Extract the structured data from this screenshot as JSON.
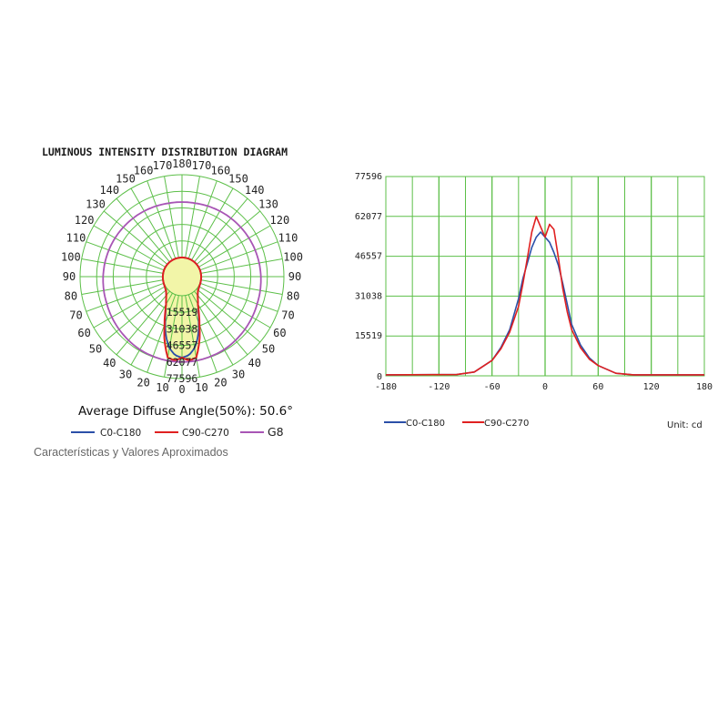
{
  "header": {
    "title": "LUMINOUS INTENSITY DISTRIBUTION DIAGRAM"
  },
  "polar": {
    "ring_labels": [
      "15519",
      "31038",
      "46557",
      "62077",
      "77596"
    ],
    "angle_labels": [
      "0",
      "10",
      "20",
      "30",
      "40",
      "50",
      "60",
      "70",
      "80",
      "90",
      "100",
      "110",
      "120",
      "130",
      "140",
      "150",
      "160",
      "170",
      "180",
      "170",
      "160",
      "150",
      "140",
      "130",
      "120",
      "110",
      "100",
      "90",
      "80",
      "70",
      "60",
      "50",
      "40",
      "30",
      "20",
      "10"
    ],
    "average_angle_label": "Average Diffuse Angle(50%): 50.6°",
    "legend": [
      "C0-C180",
      "C90-C270",
      "G8"
    ]
  },
  "footer": {
    "note": "Características y Valores Aproximados"
  },
  "unit_label": "Unit: cd",
  "colors": {
    "c0": "#2b4fa8",
    "c90": "#e02020",
    "g8": "#a855b5",
    "grid": "#5cbf48",
    "fill": "#f2f5a8"
  },
  "chart_data": [
    {
      "type": "polar",
      "title": "LUMINOUS INTENSITY DISTRIBUTION DIAGRAM",
      "r_max": 77596,
      "r_ticks": [
        15519,
        31038,
        46557,
        62077,
        77596
      ],
      "series": [
        {
          "name": "C0-C180",
          "angles": [
            0,
            5,
            10,
            15,
            20,
            25,
            30,
            35,
            40,
            45,
            50,
            60,
            70,
            80,
            90,
            180
          ],
          "values": [
            58000,
            56000,
            50000,
            40000,
            28000,
            18000,
            12000,
            8000,
            5000,
            3000,
            1800,
            700,
            300,
            150,
            50,
            0
          ]
        },
        {
          "name": "C90-C270",
          "angles": [
            0,
            5,
            10,
            15,
            20,
            25,
            30,
            35,
            40,
            45,
            50,
            60,
            70,
            80,
            90,
            180
          ],
          "values": [
            58000,
            61000,
            59000,
            45000,
            30000,
            19000,
            12000,
            8000,
            5000,
            3000,
            1800,
            700,
            300,
            150,
            50,
            0
          ]
        },
        {
          "name": "G8",
          "angles": [
            0,
            10,
            20,
            30,
            40,
            50,
            60,
            70,
            80,
            90,
            100,
            110,
            120,
            130,
            140,
            150,
            160,
            170,
            180
          ],
          "values": [
            62000,
            62000,
            61500,
            61000,
            60000,
            59000,
            58000,
            57000,
            56500,
            56000,
            55500,
            55000,
            54500,
            54000,
            53500,
            53000,
            52500,
            52000,
            52000
          ]
        }
      ]
    },
    {
      "type": "line",
      "xlim": [
        -180,
        180
      ],
      "x_ticks": [
        -180,
        -120,
        -60,
        0,
        60,
        120,
        180
      ],
      "ylim": [
        0,
        77596
      ],
      "y_ticks": [
        0,
        15519,
        31038,
        46557,
        62077,
        77596
      ],
      "series": [
        {
          "name": "C0-C180",
          "x": [
            -180,
            -100,
            -80,
            -60,
            -50,
            -40,
            -30,
            -25,
            -20,
            -15,
            -10,
            -5,
            0,
            5,
            10,
            15,
            20,
            25,
            30,
            40,
            50,
            60,
            80,
            100,
            180
          ],
          "y": [
            400,
            500,
            1500,
            6000,
            11000,
            18000,
            30000,
            38000,
            44000,
            50000,
            54000,
            56000,
            54000,
            52000,
            48000,
            43000,
            36000,
            28000,
            20000,
            12000,
            7000,
            4000,
            1000,
            400,
            400
          ]
        },
        {
          "name": "C90-C270",
          "x": [
            -180,
            -100,
            -80,
            -60,
            -50,
            -40,
            -30,
            -25,
            -20,
            -15,
            -10,
            -5,
            0,
            5,
            10,
            15,
            20,
            25,
            30,
            40,
            50,
            60,
            80,
            100,
            180
          ],
          "y": [
            400,
            500,
            1500,
            6000,
            10500,
            17000,
            27000,
            36000,
            46000,
            56000,
            62000,
            58000,
            54000,
            59000,
            57000,
            46000,
            34000,
            25000,
            18000,
            11000,
            6500,
            4000,
            1000,
            400,
            400
          ]
        }
      ]
    }
  ]
}
